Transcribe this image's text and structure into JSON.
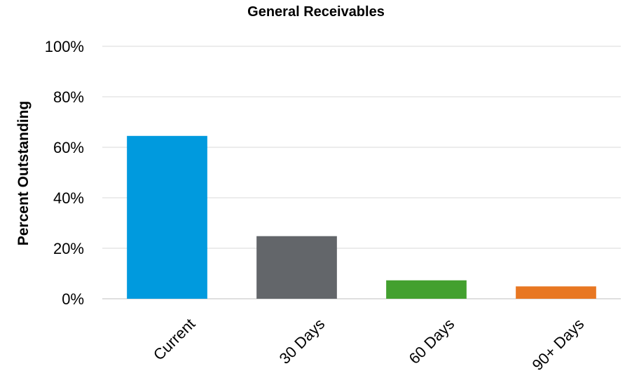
{
  "chart_data": {
    "type": "bar",
    "title": "General Receivables",
    "xlabel": "",
    "ylabel": "Percent Outstanding",
    "categories": [
      "Current",
      "30 Days",
      "60 Days",
      "90+ Days"
    ],
    "values": [
      64.5,
      24.8,
      7.3,
      4.9
    ],
    "colors": [
      "#009ADE",
      "#63666A",
      "#43A02F",
      "#E87722"
    ],
    "ylim": [
      0,
      100
    ],
    "yticks": [
      0,
      20,
      40,
      60,
      80,
      100
    ],
    "ytick_labels": [
      "0%",
      "20%",
      "40%",
      "60%",
      "80%",
      "100%"
    ],
    "grid": true,
    "legend": "none"
  }
}
